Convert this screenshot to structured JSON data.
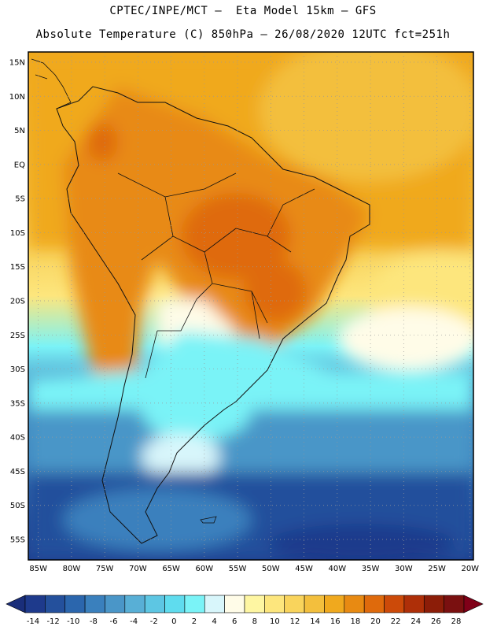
{
  "header": {
    "line1": "CPTEC/INPE/MCT –  Eta Model 15km – GFS",
    "line2": "Absolute Temperature (C) 850hPa – 26/08/2020 12UTC fct=251h"
  },
  "axes": {
    "lat_labels": [
      "15N",
      "10N",
      "5N",
      "EQ",
      "5S",
      "10S",
      "15S",
      "20S",
      "25S",
      "30S",
      "35S",
      "40S",
      "45S",
      "50S",
      "55S"
    ],
    "lon_labels": [
      "85W",
      "80W",
      "75W",
      "70W",
      "65W",
      "60W",
      "55W",
      "50W",
      "45W",
      "40W",
      "35W",
      "30W",
      "25W",
      "20W"
    ],
    "lat_range": [
      -58,
      16.5
    ],
    "lon_range": [
      -86.5,
      -19.5
    ]
  },
  "colorbar": {
    "labels": [
      "-14",
      "-12",
      "-10",
      "-8",
      "-6",
      "-4",
      "-2",
      "0",
      "2",
      "4",
      "6",
      "8",
      "10",
      "12",
      "14",
      "16",
      "18",
      "20",
      "22",
      "24",
      "26",
      "28"
    ],
    "colors": [
      "#1e3a8c",
      "#24509c",
      "#2b66ad",
      "#3a80bd",
      "#4a96c8",
      "#58afd6",
      "#5dc6e3",
      "#5fdcee",
      "#7af3f7",
      "#d8f6fb",
      "#fffce8",
      "#fef6a2",
      "#fde67d",
      "#f9d45c",
      "#f3bf3d",
      "#f0a91e",
      "#e88a12",
      "#df6a0c",
      "#cc4a09",
      "#ae2f08",
      "#8c1d08",
      "#7a1010"
    ]
  }
}
